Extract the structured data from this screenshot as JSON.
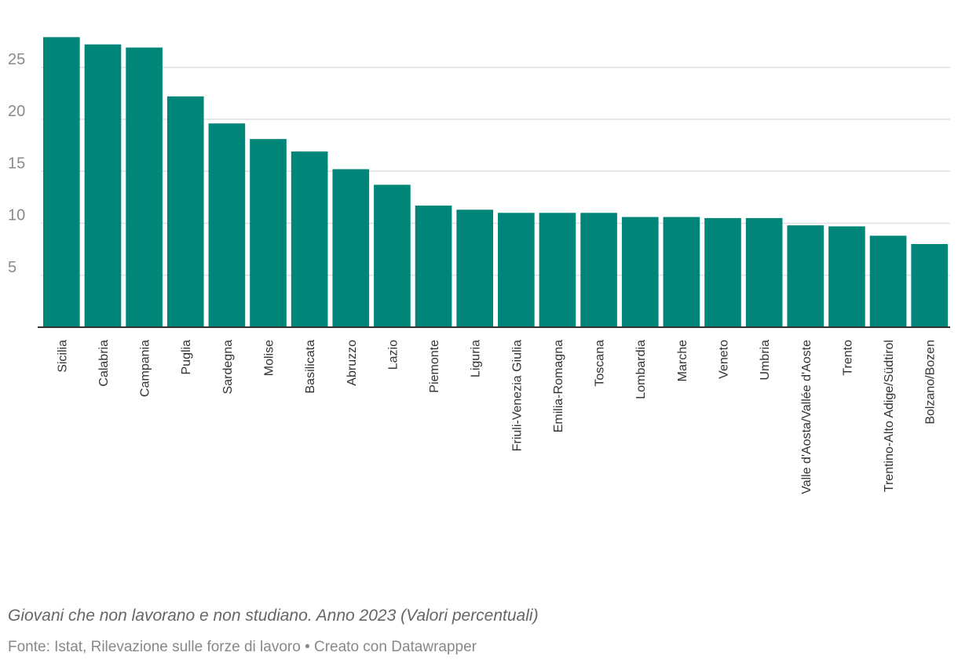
{
  "chart_data": {
    "type": "bar",
    "categories": [
      "Sicilia",
      "Calabria",
      "Campania",
      "Puglia",
      "Sardegna",
      "Molise",
      "Basilicata",
      "Abruzzo",
      "Lazio",
      "Piemonte",
      "Liguria",
      "Friuli-Venezia Giulia",
      "Emilia-Romagna",
      "Toscana",
      "Lombardia",
      "Marche",
      "Veneto",
      "Umbria",
      "Valle d'Aosta/Vallée d'Aoste",
      "Trento",
      "Trentino-Alto Adige/Südtirol",
      "Bolzano/Bozen"
    ],
    "values": [
      27.9,
      27.2,
      26.9,
      22.2,
      19.6,
      18.1,
      16.9,
      15.2,
      13.7,
      11.7,
      11.3,
      11.0,
      11.0,
      11.0,
      10.6,
      10.6,
      10.5,
      10.5,
      9.8,
      9.7,
      8.8,
      8.0
    ],
    "yticks": [
      5,
      10,
      15,
      20,
      25
    ],
    "ylim": [
      0,
      30
    ],
    "grid": true,
    "title": "",
    "xlabel": "",
    "ylabel": "",
    "bar_color": "#008579",
    "grid_color": "#e0e0e0",
    "axis_color": "#333333"
  },
  "caption": "Giovani che non lavorano e non studiano. Anno 2023 (Valori percentuali)",
  "source": "Fonte: Istat, Rilevazione sulle forze di lavoro • Creato con Datawrapper"
}
